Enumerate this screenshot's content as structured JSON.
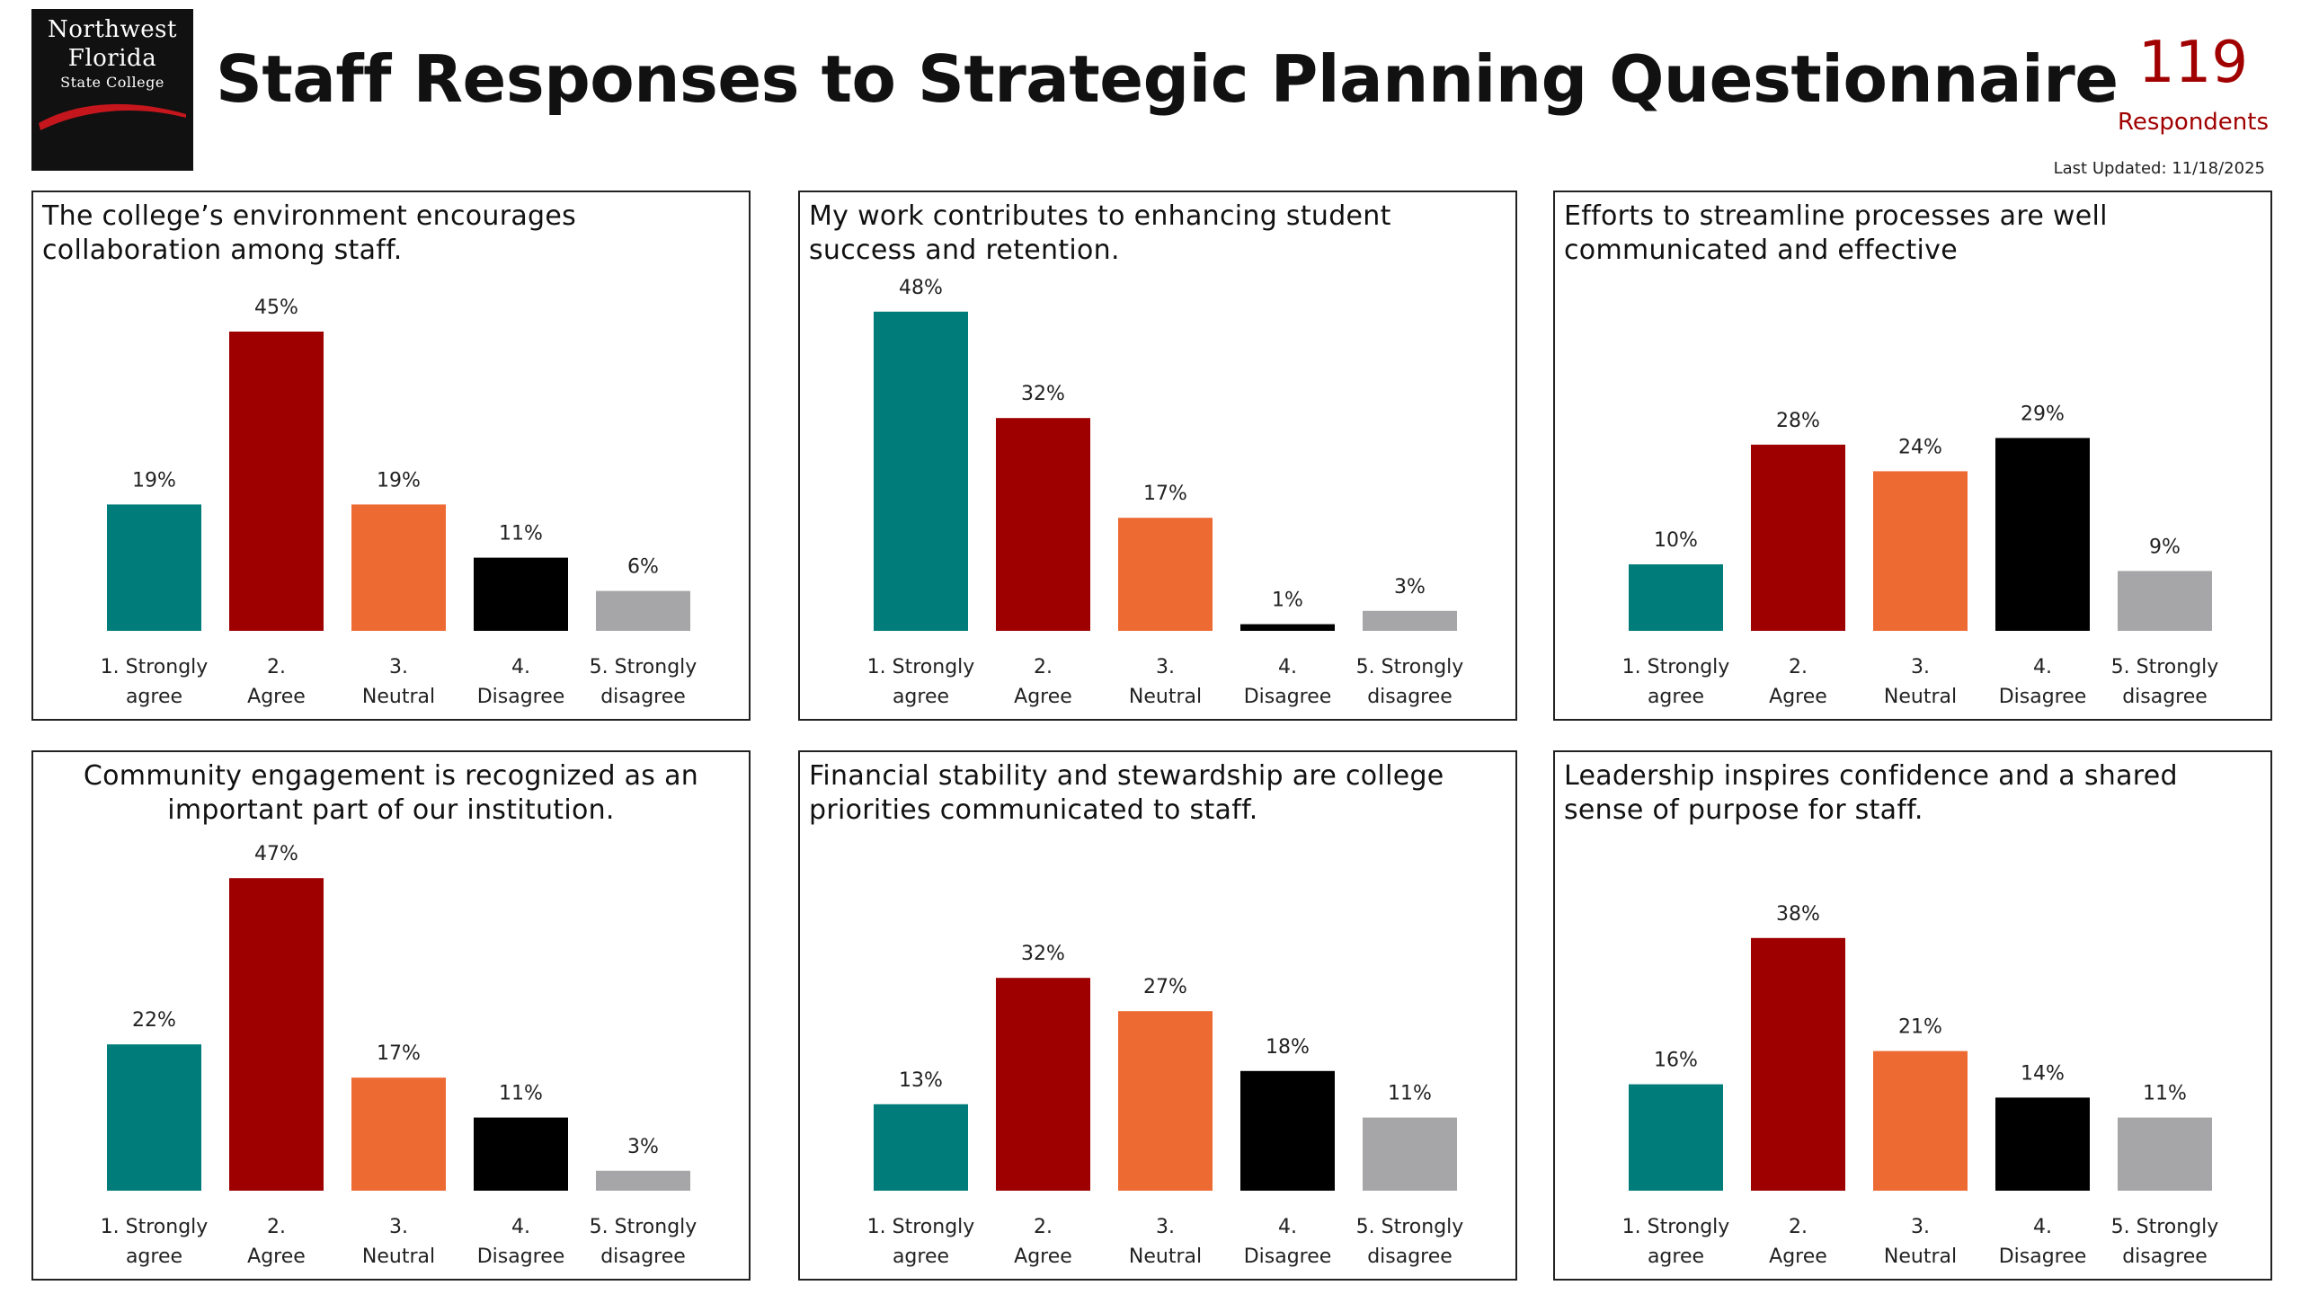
{
  "header": {
    "logo_lines": [
      "Northwest",
      "Florida",
      "State College"
    ],
    "title": "Staff Responses to Strategic Planning Questionnaire",
    "respondents_count": "119",
    "respondents_label": "Respondents",
    "last_updated": "Last Updated: 11/18/2025"
  },
  "colors": {
    "strongly_agree": "#007d7a",
    "agree": "#9e0000",
    "neutral": "#ee6a33",
    "disagree": "#000000",
    "strongly_disagree": "#a6a6a8",
    "accent": "#a10000"
  },
  "chart_data": [
    {
      "type": "bar",
      "title": "The college’s environment encourages collaboration among staff.",
      "categories": [
        "1. Strongly agree",
        "2. Agree",
        "3. Neutral",
        "4. Disagree",
        "5. Strongly disagree"
      ],
      "values": [
        19,
        45,
        19,
        11,
        6
      ],
      "value_labels": [
        "19%",
        "45%",
        "19%",
        "11%",
        "6%"
      ]
    },
    {
      "type": "bar",
      "title": "My work contributes to enhancing student success and retention.",
      "categories": [
        "1. Strongly agree",
        "2. Agree",
        "3. Neutral",
        "4. Disagree",
        "5. Strongly disagree"
      ],
      "values": [
        48,
        32,
        17,
        1,
        3
      ],
      "value_labels": [
        "48%",
        "32%",
        "17%",
        "1%",
        "3%"
      ]
    },
    {
      "type": "bar",
      "title": "Efforts to streamline processes are well communicated and effective",
      "categories": [
        "1. Strongly agree",
        "2. Agree",
        "3. Neutral",
        "4. Disagree",
        "5. Strongly disagree"
      ],
      "values": [
        10,
        28,
        24,
        29,
        9
      ],
      "value_labels": [
        "10%",
        "28%",
        "24%",
        "29%",
        "9%"
      ]
    },
    {
      "type": "bar",
      "title": "Community engagement is recognized as an important part of our institution.",
      "title_align": "center",
      "categories": [
        "1. Strongly agree",
        "2. Agree",
        "3. Neutral",
        "4. Disagree",
        "5. Strongly disagree"
      ],
      "values": [
        22,
        47,
        17,
        11,
        3
      ],
      "value_labels": [
        "22%",
        "47%",
        "17%",
        "11%",
        "3%"
      ]
    },
    {
      "type": "bar",
      "title": "Financial stability and stewardship are college priorities communicated to staff.",
      "categories": [
        "1. Strongly agree",
        "2. Agree",
        "3. Neutral",
        "4. Disagree",
        "5. Strongly disagree"
      ],
      "values": [
        13,
        32,
        27,
        18,
        11
      ],
      "value_labels": [
        "13%",
        "32%",
        "27%",
        "18%",
        "11%"
      ]
    },
    {
      "type": "bar",
      "title": "Leadership inspires confidence and a shared sense of purpose for staff.",
      "categories": [
        "1. Strongly agree",
        "2. Agree",
        "3. Neutral",
        "4. Disagree",
        "5. Strongly disagree"
      ],
      "values": [
        16,
        38,
        21,
        14,
        11
      ],
      "value_labels": [
        "16%",
        "38%",
        "21%",
        "14%",
        "11%"
      ]
    }
  ]
}
